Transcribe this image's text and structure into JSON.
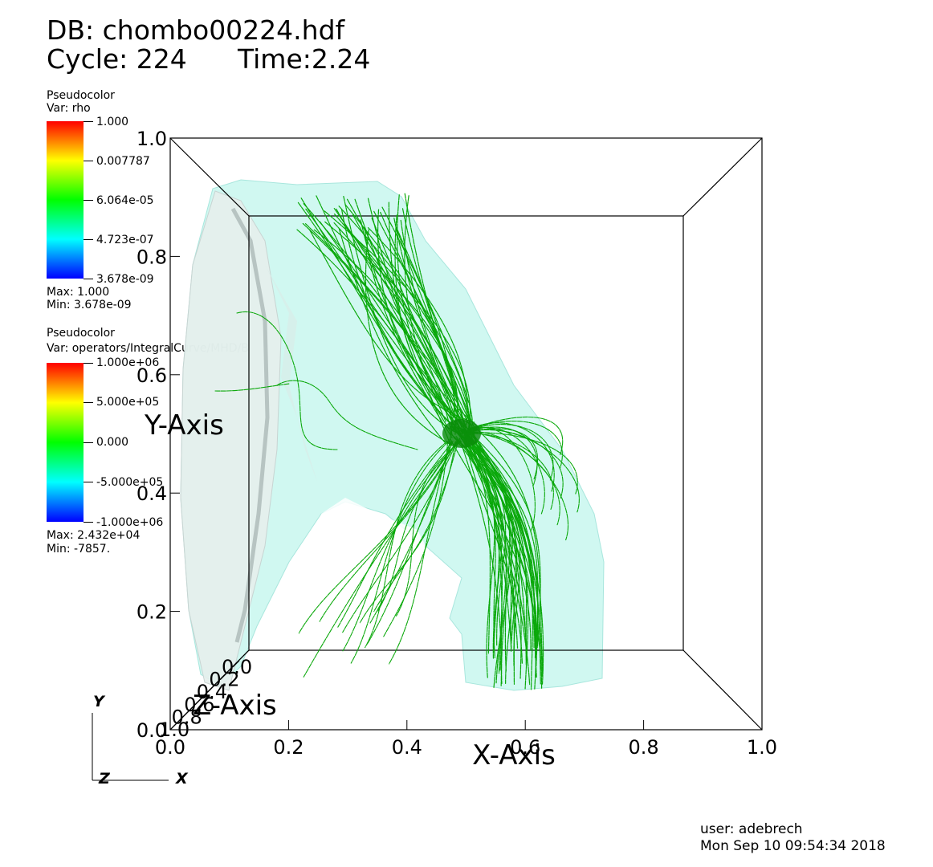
{
  "header": {
    "db_label": "DB: chombo00224.hdf",
    "cycle_label": "Cycle: 224",
    "time_label": "Time:2.24"
  },
  "legends": [
    {
      "plot_type": "Pseudocolor",
      "variable": "Var: rho",
      "ticks": [
        "1.000",
        "0.007787",
        "6.064e-05",
        "4.723e-07",
        "3.678e-09"
      ],
      "max_label": "Max:  1.000",
      "min_label": "Min:  3.678e-09",
      "colors": [
        "#ff0000",
        "#ffff00",
        "#00ff00",
        "#00ffff",
        "#0000ff"
      ]
    },
    {
      "plot_type": "Pseudocolor",
      "variable": "Var: operators/IntegralCurve/MHD/B",
      "ticks": [
        "1.000e+06",
        "5.000e+05",
        "0.000",
        "-5.000e+05",
        "-1.000e+06"
      ],
      "max_label": "Max:  2.432e+04",
      "min_label": "Min:  -7857.",
      "colors": [
        "#ff0000",
        "#ffff00",
        "#00ff00",
        "#00ffff",
        "#0000ff"
      ]
    }
  ],
  "chart_data": {
    "type": "3d-scene",
    "plots": [
      "Pseudocolor surface of rho (translucent cyan)",
      "Integral curves of MHD/B (green streamlines)"
    ],
    "xlabel": "X-Axis",
    "ylabel": "Y-Axis",
    "zlabel": "Z-Axis",
    "xlim": [
      0.0,
      1.0
    ],
    "ylim": [
      0.0,
      1.0
    ],
    "zlim": [
      0.0,
      1.0
    ],
    "x_ticks": [
      "0.0",
      "0.2",
      "0.4",
      "0.6",
      "0.8",
      "1.0"
    ],
    "y_ticks": [
      "0.0",
      "0.2",
      "0.4",
      "0.6",
      "0.8",
      "1.0"
    ],
    "z_ticks": [
      "1.0",
      "0.8",
      "0.6",
      "0.4",
      "0.2",
      "0.0"
    ],
    "triad_labels": [
      "Y",
      "Z",
      "X"
    ],
    "surface_color": "#c8f5ee",
    "streamline_color": "#0aa80a"
  },
  "footer": {
    "user_label": "user: adebrech",
    "date_label": "Mon Sep 10 09:54:34 2018"
  }
}
